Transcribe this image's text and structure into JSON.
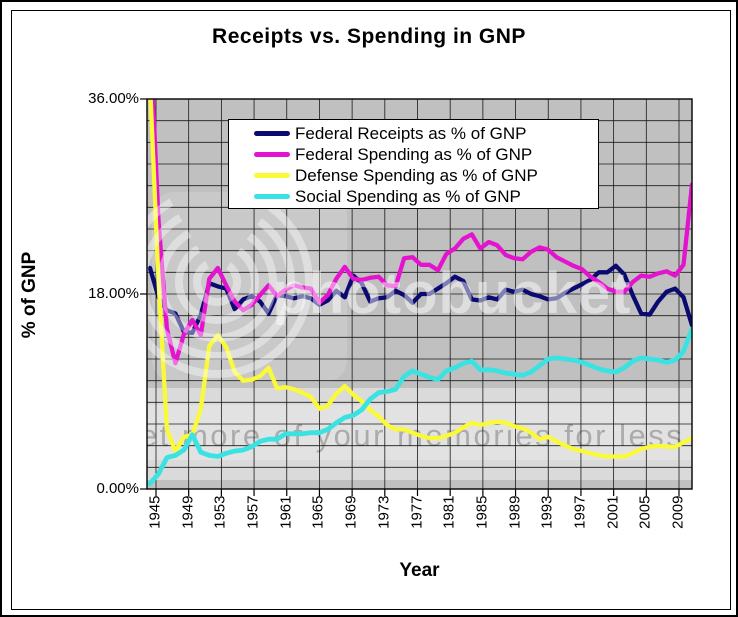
{
  "chart": {
    "title": "Receipts vs. Spending in GNP",
    "xlabel": "Year",
    "ylabel": "% of GNP"
  },
  "watermark": {
    "brand": "photobucket",
    "slogan": "et more of your memories for less"
  },
  "colors": {
    "plot_background": "#C0C0C0",
    "gridline": "#1a1a1a",
    "frame": "#000000",
    "receipts": "#0a0a70",
    "spending": "#e414ce",
    "defense": "#fafa38",
    "social": "#3be2e2"
  },
  "chart_data": {
    "type": "line",
    "title": "Receipts vs. Spending in GNP",
    "xlabel": "Year",
    "ylabel": "% of GNP",
    "ylim": [
      0,
      36
    ],
    "yticks": {
      "values": [
        36,
        18,
        0
      ],
      "labels": [
        "36.00%",
        "18.00%",
        "0.00%"
      ]
    },
    "xticks": [
      1945,
      1949,
      1953,
      1957,
      1961,
      1965,
      1969,
      1973,
      1977,
      1981,
      1985,
      1989,
      1993,
      1997,
      2001,
      2005,
      2009
    ],
    "grid": true,
    "legend_position": "top-center",
    "x": [
      1945,
      1946,
      1947,
      1948,
      1949,
      1950,
      1951,
      1952,
      1953,
      1954,
      1955,
      1956,
      1957,
      1958,
      1959,
      1960,
      1961,
      1962,
      1963,
      1964,
      1965,
      1966,
      1967,
      1968,
      1969,
      1970,
      1971,
      1972,
      1973,
      1974,
      1975,
      1976,
      1977,
      1978,
      1979,
      1980,
      1981,
      1982,
      1983,
      1984,
      1985,
      1986,
      1987,
      1988,
      1989,
      1990,
      1991,
      1992,
      1993,
      1994,
      1995,
      1996,
      1997,
      1998,
      1999,
      2000,
      2001,
      2002,
      2003,
      2004,
      2005,
      2006,
      2007,
      2008,
      2009
    ],
    "series": [
      {
        "name": "Federal Receipts as % of GNP",
        "color": "#0a0a70",
        "values": [
          20.4,
          17.7,
          16.5,
          16.2,
          14.5,
          14.4,
          16.1,
          19.0,
          18.7,
          18.5,
          16.6,
          17.5,
          17.8,
          17.3,
          16.2,
          17.9,
          17.8,
          17.6,
          17.8,
          17.6,
          17.0,
          17.4,
          18.3,
          17.7,
          19.7,
          19.0,
          17.3,
          17.6,
          17.7,
          18.3,
          17.9,
          17.2,
          18.0,
          18.0,
          18.5,
          19.0,
          19.6,
          19.2,
          17.5,
          17.4,
          17.7,
          17.5,
          18.4,
          18.2,
          18.4,
          18.0,
          17.8,
          17.5,
          17.6,
          18.1,
          18.5,
          18.9,
          19.3,
          20.0,
          20.0,
          20.6,
          19.8,
          17.9,
          16.2,
          16.1,
          17.3,
          18.2,
          18.5,
          17.7,
          15.1
        ]
      },
      {
        "name": "Federal Spending as % of GNP",
        "color": "#e414ce",
        "values": [
          41.9,
          24.8,
          14.8,
          11.6,
          14.3,
          15.6,
          14.2,
          19.4,
          20.4,
          18.8,
          17.3,
          16.5,
          17.0,
          17.9,
          18.8,
          17.8,
          18.4,
          18.8,
          18.6,
          18.5,
          17.2,
          17.9,
          19.4,
          20.5,
          19.4,
          19.3,
          19.5,
          19.6,
          18.8,
          18.7,
          21.3,
          21.4,
          20.7,
          20.7,
          20.2,
          21.7,
          22.2,
          23.1,
          23.5,
          22.2,
          22.8,
          22.5,
          21.6,
          21.3,
          21.2,
          21.9,
          22.3,
          22.1,
          21.4,
          21.0,
          20.6,
          20.3,
          19.6,
          19.1,
          18.5,
          18.2,
          18.2,
          19.1,
          19.7,
          19.6,
          19.9,
          20.1,
          19.7,
          20.7,
          28.1
        ]
      },
      {
        "name": "Defense Spending as % of GNP",
        "color": "#fafa38",
        "values": [
          37.5,
          19.2,
          5.5,
          3.5,
          4.8,
          5.0,
          7.4,
          13.2,
          14.2,
          13.1,
          10.8,
          10.0,
          10.1,
          10.4,
          11.2,
          9.3,
          9.4,
          9.2,
          8.9,
          8.5,
          7.4,
          7.7,
          8.8,
          9.5,
          8.7,
          8.1,
          7.3,
          6.7,
          5.9,
          5.5,
          5.5,
          5.2,
          4.9,
          4.7,
          4.7,
          4.9,
          5.2,
          5.7,
          6.1,
          5.9,
          6.1,
          6.2,
          6.1,
          5.8,
          5.6,
          5.2,
          4.6,
          4.8,
          4.4,
          4.0,
          3.7,
          3.5,
          3.3,
          3.1,
          3.0,
          3.0,
          3.0,
          3.3,
          3.7,
          3.9,
          4.0,
          3.9,
          3.9,
          4.3,
          4.7
        ]
      },
      {
        "name": "Social Spending as % of GNP",
        "color": "#3be2e2",
        "values": [
          0.5,
          1.4,
          2.9,
          3.1,
          3.6,
          5.0,
          3.4,
          3.1,
          3.0,
          3.3,
          3.5,
          3.6,
          3.9,
          4.4,
          4.6,
          4.6,
          5.1,
          5.1,
          5.1,
          5.2,
          5.2,
          5.5,
          6.1,
          6.6,
          6.8,
          7.3,
          8.3,
          8.9,
          9.0,
          9.2,
          10.4,
          10.9,
          10.6,
          10.3,
          10.1,
          10.9,
          11.2,
          11.6,
          11.8,
          11.0,
          11.0,
          10.9,
          10.7,
          10.6,
          10.5,
          10.8,
          11.4,
          12.0,
          12.1,
          12.0,
          11.9,
          11.7,
          11.4,
          11.1,
          10.9,
          10.8,
          11.2,
          11.8,
          12.1,
          12.0,
          11.9,
          11.7,
          11.9,
          12.7,
          14.8
        ]
      }
    ]
  }
}
